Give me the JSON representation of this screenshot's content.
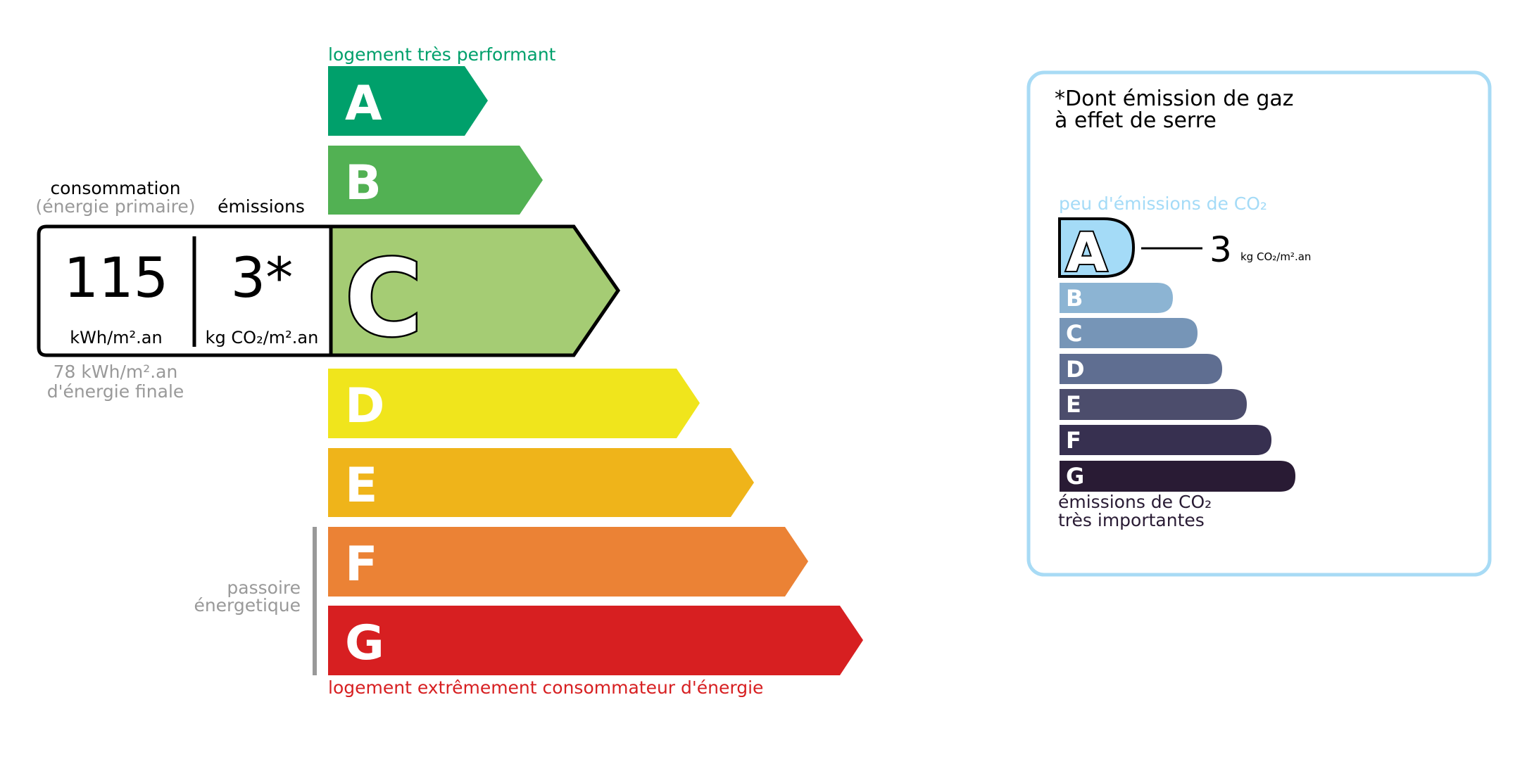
{
  "energy": {
    "top_label": "logement très performant",
    "bottom_label": "logement extrêmement consommateur d'énergie",
    "passoire_label": [
      "passoire",
      "énergetique"
    ],
    "classes": [
      {
        "letter": "A",
        "color": "#00a06b"
      },
      {
        "letter": "B",
        "color": "#52b153"
      },
      {
        "letter": "C",
        "color": "#a5cc74"
      },
      {
        "letter": "D",
        "color": "#f0e51c"
      },
      {
        "letter": "E",
        "color": "#efb41a"
      },
      {
        "letter": "F",
        "color": "#eb8235"
      },
      {
        "letter": "G",
        "color": "#d71f21"
      }
    ],
    "current_class": "C",
    "consumption_header": "consommation",
    "consumption_sub": "(énergie primaire)",
    "emissions_header": "émissions",
    "consumption_value": "115",
    "consumption_unit": "kWh/m².an",
    "emissions_value": "3*",
    "emissions_unit": "kg CO₂/m².an",
    "final_energy_value": "78 kWh/m².an",
    "final_energy_label": "d'énergie finale"
  },
  "ghg": {
    "title_line1": "*Dont émission de gaz",
    "title_line2": "à effet de serre",
    "top_label": "peu d'émissions de CO₂",
    "bottom_label_line1": "émissions de CO₂",
    "bottom_label_line2": "très importantes",
    "classes": [
      {
        "letter": "A",
        "color": "#a4dbf7"
      },
      {
        "letter": "B",
        "color": "#8cb4d3"
      },
      {
        "letter": "C",
        "color": "#7695b7"
      },
      {
        "letter": "D",
        "color": "#5f6e91"
      },
      {
        "letter": "E",
        "color": "#4c4d6c"
      },
      {
        "letter": "F",
        "color": "#373050"
      },
      {
        "letter": "G",
        "color": "#291b34"
      }
    ],
    "current_class": "A",
    "value": "3",
    "unit": "kg CO₂/m².an",
    "border_color": "#a8dbf5"
  }
}
